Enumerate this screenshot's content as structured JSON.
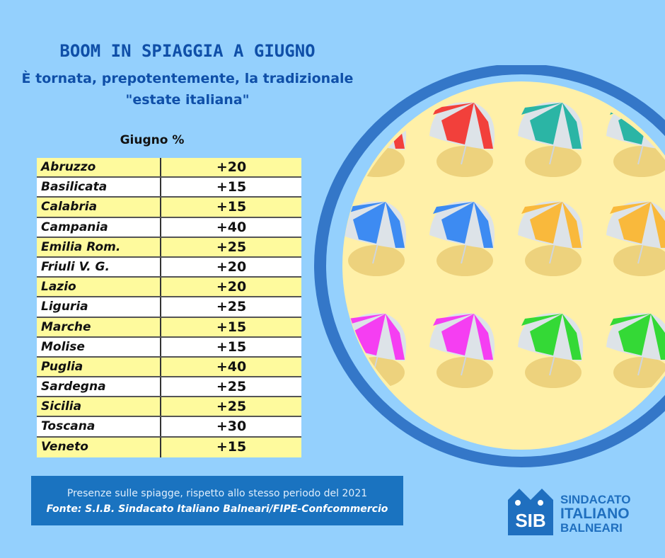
{
  "header": {
    "title": "BOOM IN SPIAGGIA A GIUGNO",
    "subtitle_line1": "È tornata, prepotentemente, la tradizionale",
    "subtitle_line2": "\"estate italiana\""
  },
  "table": {
    "heading": "Giugno %",
    "rows": [
      {
        "region": "Abruzzo",
        "value": "+20"
      },
      {
        "region": "Basilicata",
        "value": "+15"
      },
      {
        "region": "Calabria",
        "value": "+15"
      },
      {
        "region": "Campania",
        "value": "+40"
      },
      {
        "region": "Emilia Rom.",
        "value": "+25"
      },
      {
        "region": "Friuli V. G.",
        "value": "+20"
      },
      {
        "region": "Lazio",
        "value": "+20"
      },
      {
        "region": "Liguria",
        "value": "+25"
      },
      {
        "region": "Marche",
        "value": "+15"
      },
      {
        "region": "Molise",
        "value": "+15"
      },
      {
        "region": "Puglia",
        "value": "+40"
      },
      {
        "region": "Sardegna",
        "value": "+25"
      },
      {
        "region": "Sicilia",
        "value": "+25"
      },
      {
        "region": "Toscana",
        "value": "+30"
      },
      {
        "region": "Veneto",
        "value": "+15"
      }
    ]
  },
  "footer": {
    "note": "Presenze sulle spiagge, rispetto allo stesso periodo del 2021",
    "source": "Fonte: S.I.B. Sindacato Italiano Balneari/FIPE-Confcommercio"
  },
  "logo": {
    "mark": "SIB",
    "line1": "SINDACATO",
    "line2": "ITALIANO",
    "line3": "BALNEARI"
  },
  "illustration": {
    "name": "beach-umbrellas-circle",
    "umbrella_colors": [
      "#f2403b",
      "#2bb5a5",
      "#3d8bf2",
      "#f9b93c",
      "#f53ef2",
      "#34d936"
    ],
    "sand_color": "#fff0a8",
    "ring_color": "#3477c8"
  },
  "colors": {
    "background": "#94d0fd",
    "title": "#0f4fa8",
    "row_yellow": "#fefa9d",
    "footer_box": "#1a73c0"
  }
}
